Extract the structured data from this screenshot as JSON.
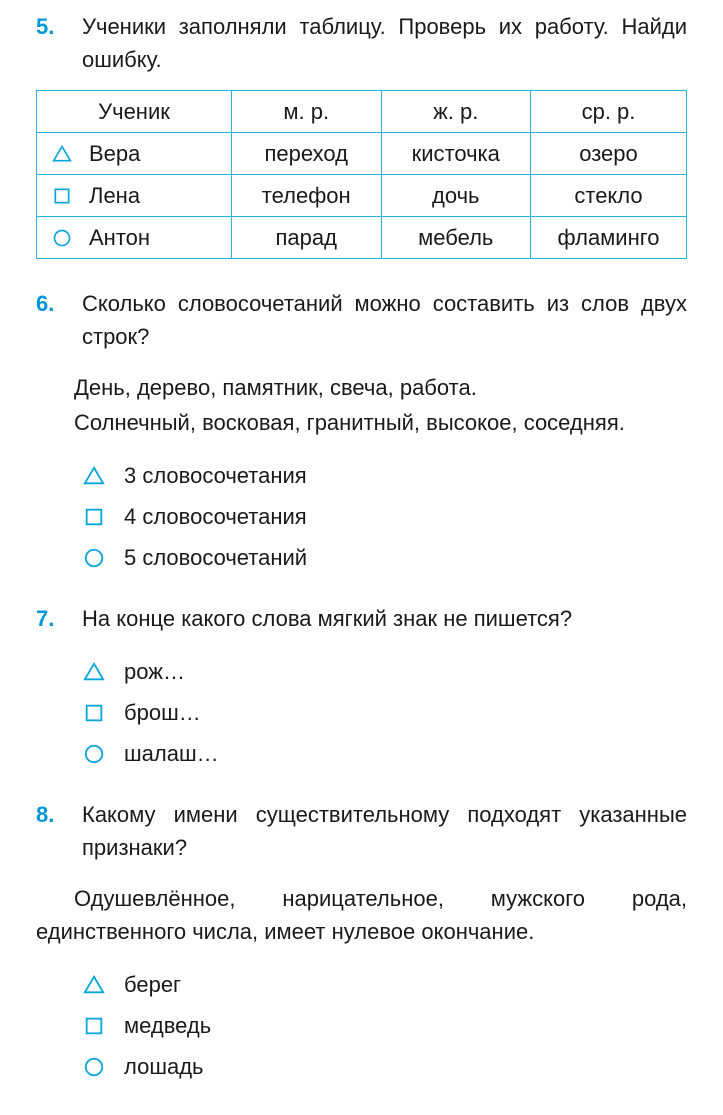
{
  "colors": {
    "accent": "#0097d6",
    "border": "#24b4e2",
    "text": "#1a1a1a",
    "marker_stroke": "#0aa7db"
  },
  "q5": {
    "num": "5.",
    "text": "Ученики заполняли таблицу. Проверь их работу. Найди ошибку.",
    "table": {
      "columns": [
        "Ученик",
        "м. р.",
        "ж. р.",
        "ср. р."
      ],
      "rows": [
        {
          "marker": "triangle",
          "name": "Вера",
          "m": "переход",
          "zh": "кисточка",
          "sr": "озеро"
        },
        {
          "marker": "square",
          "name": "Лена",
          "m": "телефон",
          "zh": "дочь",
          "sr": "стекло"
        },
        {
          "marker": "circle",
          "name": "Антон",
          "m": "парад",
          "zh": "мебель",
          "sr": "фламинго"
        }
      ]
    }
  },
  "q6": {
    "num": "6.",
    "text": "Сколько словосочетаний можно составить из слов двух строк?",
    "line1": "День, дерево, памятник, свеча, работа.",
    "line2": "Солнечный, восковая, гранитный, высокое, соседняя.",
    "answers": [
      {
        "marker": "triangle",
        "text": "3  словосочетания"
      },
      {
        "marker": "square",
        "text": "4  словосочетания"
      },
      {
        "marker": "circle",
        "text": "5  словосочетаний"
      }
    ]
  },
  "q7": {
    "num": "7.",
    "text": "На конце какого слова мягкий знак не пишется?",
    "answers": [
      {
        "marker": "triangle",
        "text": "рож…"
      },
      {
        "marker": "square",
        "text": "брош…"
      },
      {
        "marker": "circle",
        "text": "шалаш…"
      }
    ]
  },
  "q8": {
    "num": "8.",
    "text": "Какому имени существительному подходят указанные признаки?",
    "desc": "Одушевлённое, нарицательное, мужского рода, единственного числа, имеет нулевое окончание.",
    "answers": [
      {
        "marker": "triangle",
        "text": "берег"
      },
      {
        "marker": "square",
        "text": "медведь"
      },
      {
        "marker": "circle",
        "text": "лошадь"
      }
    ]
  }
}
